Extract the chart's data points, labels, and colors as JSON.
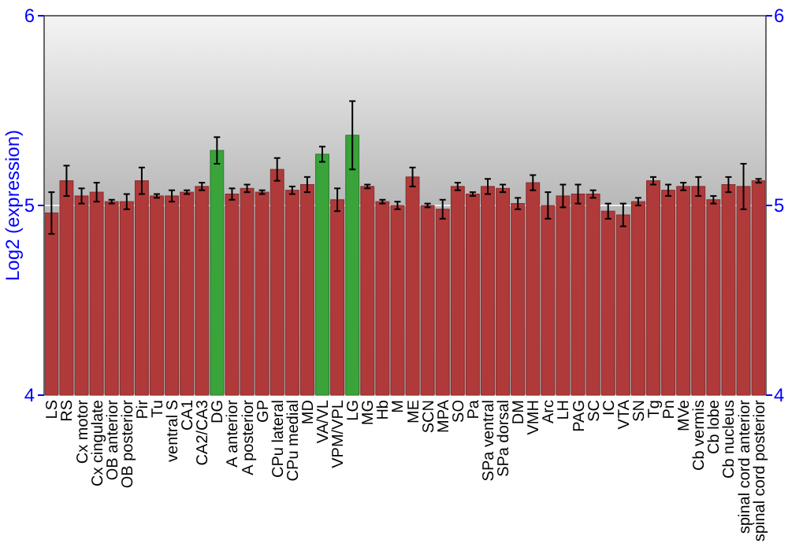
{
  "chart_data": {
    "type": "bar",
    "ylabel": "Log2 (expression)",
    "categories": [
      "LS",
      "RS",
      "Cx motor",
      "Cx cingulate",
      "OB anterior",
      "OB posterior",
      "Pir",
      "Tu",
      "ventral S",
      "CA1",
      "CA2/CA3",
      "DG",
      "A anterior",
      "A posterior",
      "GP",
      "CPu lateral",
      "CPu medial",
      "MD",
      "VA/VL",
      "VPM/VPL",
      "LG",
      "MG",
      "Hb",
      "M",
      "ME",
      "SCN",
      "MPA",
      "SO",
      "Pa",
      "SPa ventral",
      "SPa dorsal",
      "DM",
      "VMH",
      "Arc",
      "LH",
      "PAG",
      "SC",
      "IC",
      "VTA",
      "SN",
      "Tg",
      "Pn",
      "MVe",
      "Cb vermis",
      "Cb lobe",
      "Cb nucleus",
      "spinal cord anterior",
      "spinal cord posterior"
    ],
    "values": [
      4.96,
      5.13,
      5.05,
      5.07,
      5.02,
      5.02,
      5.13,
      5.05,
      5.05,
      5.07,
      5.1,
      5.29,
      5.06,
      5.09,
      5.07,
      5.19,
      5.08,
      5.11,
      5.27,
      5.03,
      5.37,
      5.1,
      5.02,
      5.0,
      5.15,
      5.0,
      4.98,
      5.1,
      5.06,
      5.1,
      5.09,
      5.01,
      5.12,
      5.0,
      5.05,
      5.06,
      5.06,
      4.97,
      4.95,
      5.02,
      5.13,
      5.08,
      5.1,
      5.1,
      5.03,
      5.11,
      5.1,
      5.13
    ],
    "errors": [
      0.11,
      0.08,
      0.04,
      0.05,
      0.01,
      0.04,
      0.07,
      0.01,
      0.03,
      0.01,
      0.02,
      0.07,
      0.03,
      0.02,
      0.01,
      0.06,
      0.02,
      0.04,
      0.04,
      0.06,
      0.18,
      0.01,
      0.01,
      0.02,
      0.05,
      0.01,
      0.05,
      0.02,
      0.01,
      0.04,
      0.02,
      0.03,
      0.04,
      0.07,
      0.06,
      0.05,
      0.02,
      0.04,
      0.06,
      0.02,
      0.02,
      0.03,
      0.02,
      0.05,
      0.02,
      0.04,
      0.12,
      0.01
    ],
    "colors": [
      "#b03a3a",
      "#b03a3a",
      "#b03a3a",
      "#b03a3a",
      "#b03a3a",
      "#b03a3a",
      "#b03a3a",
      "#b03a3a",
      "#b03a3a",
      "#b03a3a",
      "#b03a3a",
      "#3aa33a",
      "#b03a3a",
      "#b03a3a",
      "#b03a3a",
      "#b03a3a",
      "#b03a3a",
      "#b03a3a",
      "#3aa33a",
      "#b03a3a",
      "#3aa33a",
      "#b03a3a",
      "#b03a3a",
      "#b03a3a",
      "#b03a3a",
      "#b03a3a",
      "#b03a3a",
      "#b03a3a",
      "#b03a3a",
      "#b03a3a",
      "#b03a3a",
      "#b03a3a",
      "#b03a3a",
      "#b03a3a",
      "#b03a3a",
      "#b03a3a",
      "#b03a3a",
      "#b03a3a",
      "#b03a3a",
      "#b03a3a",
      "#b03a3a",
      "#b03a3a",
      "#b03a3a",
      "#b03a3a",
      "#b03a3a",
      "#b03a3a",
      "#b03a3a",
      "#b03a3a"
    ],
    "ylim": [
      4,
      6
    ],
    "yticks": [
      4,
      5,
      6
    ],
    "y2lim": [
      4,
      6
    ],
    "y2ticks": [
      4,
      5,
      6
    ],
    "grid": "y"
  }
}
